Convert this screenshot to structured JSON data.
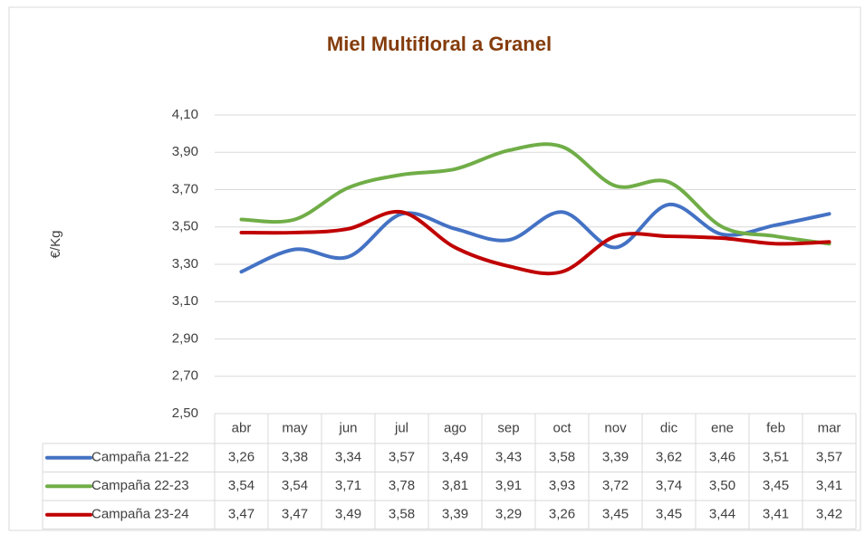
{
  "chart_data": {
    "type": "line",
    "title": "Miel Multifloral a Granel",
    "y_label": "€/Kg",
    "categories": [
      "abr",
      "may",
      "jun",
      "jul",
      "ago",
      "sep",
      "oct",
      "nov",
      "dic",
      "ene",
      "feb",
      "mar"
    ],
    "series": [
      {
        "name": "Campaña 21-22",
        "color": "#4472c4",
        "values": [
          3.26,
          3.38,
          3.34,
          3.57,
          3.49,
          3.43,
          3.58,
          3.39,
          3.62,
          3.46,
          3.51,
          3.57
        ],
        "value_labels": [
          "3,26",
          "3,38",
          "3,34",
          "3,57",
          "3,49",
          "3,43",
          "3,58",
          "3,39",
          "3,62",
          "3,46",
          "3,51",
          "3,57"
        ]
      },
      {
        "name": "Campaña 22-23",
        "color": "#70ad47",
        "values": [
          3.54,
          3.54,
          3.71,
          3.78,
          3.81,
          3.91,
          3.93,
          3.72,
          3.74,
          3.5,
          3.45,
          3.41
        ],
        "value_labels": [
          "3,54",
          "3,54",
          "3,71",
          "3,78",
          "3,81",
          "3,91",
          "3,93",
          "3,72",
          "3,74",
          "3,50",
          "3,45",
          "3,41"
        ]
      },
      {
        "name": "Campaña 23-24",
        "color": "#c00000",
        "values": [
          3.47,
          3.47,
          3.49,
          3.58,
          3.39,
          3.29,
          3.26,
          3.45,
          3.45,
          3.44,
          3.41,
          3.42
        ],
        "value_labels": [
          "3,47",
          "3,47",
          "3,49",
          "3,58",
          "3,39",
          "3,29",
          "3,26",
          "3,45",
          "3,45",
          "3,44",
          "3,41",
          "3,42"
        ]
      }
    ],
    "ylim": [
      2.5,
      4.1
    ],
    "yticks": [
      {
        "value": 2.5,
        "label": "2,50"
      },
      {
        "value": 2.7,
        "label": "2,70"
      },
      {
        "value": 2.9,
        "label": "2,90"
      },
      {
        "value": 3.1,
        "label": "3,10"
      },
      {
        "value": 3.3,
        "label": "3,30"
      },
      {
        "value": 3.5,
        "label": "3,50"
      },
      {
        "value": 3.7,
        "label": "3,70"
      },
      {
        "value": 3.9,
        "label": "3,90"
      },
      {
        "value": 4.1,
        "label": "4,10"
      }
    ],
    "grid": true
  }
}
